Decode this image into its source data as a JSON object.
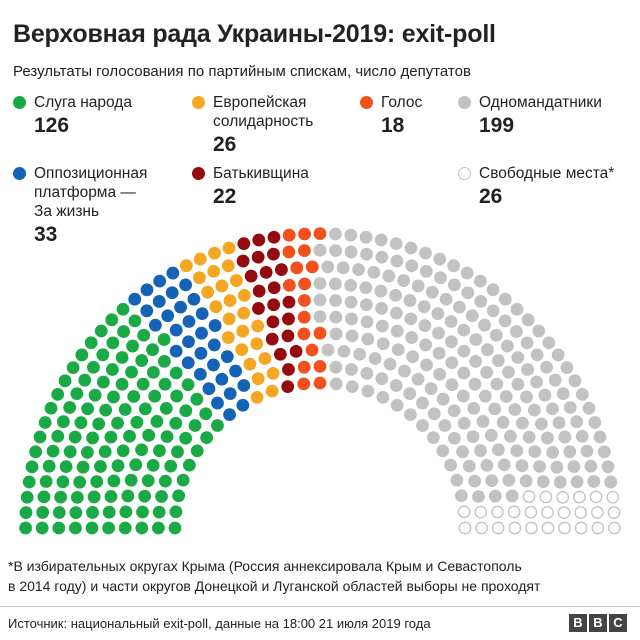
{
  "chart_data": {
    "type": "parliament",
    "title": "Верховная рада Украины-2019: exit-poll",
    "subtitle": "Результаты голосования по партийным спискам, число депутатов",
    "total_seats": 450,
    "rows": 10,
    "series": [
      {
        "name": "Слуга народа",
        "value": 126,
        "color": "#1aaa45"
      },
      {
        "name": "Оппозиционная\nплатформа —\nЗа жизнь",
        "value": 33,
        "color": "#1563b7"
      },
      {
        "name": "Европейская\nсолидарность",
        "value": 26,
        "color": "#f5a623"
      },
      {
        "name": "Батькивщина",
        "value": 22,
        "color": "#940a0f"
      },
      {
        "name": "Голос",
        "value": 18,
        "color": "#f2511b"
      },
      {
        "name": "Одномандатники",
        "value": 199,
        "color": "#c2c2c2"
      },
      {
        "name": "Свободные места*",
        "value": 26,
        "color": "#ffffff",
        "stroke": "#c2c2c2"
      }
    ],
    "footnote": "*В избирательных округах Крыма (Россия аннексировала Крым и Севастополь\n  в 2014 году) и части округов Донецкой и Луганской областей выборы не проходят",
    "source": "Источник: национальный exit-poll, данные на 18:00 21 июля 2019 года"
  },
  "branding": {
    "letters": [
      "B",
      "B",
      "C"
    ]
  }
}
